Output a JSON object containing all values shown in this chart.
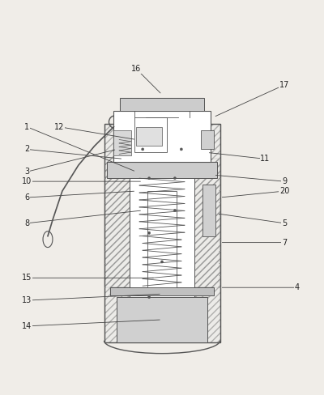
{
  "bg_color": "#f0ede8",
  "line_color": "#555555",
  "hatch_color": "#888888",
  "title": "",
  "labels": {
    "1": [
      0.08,
      0.72,
      0.42,
      0.58
    ],
    "2": [
      0.08,
      0.65,
      0.38,
      0.62
    ],
    "3": [
      0.08,
      0.58,
      0.36,
      0.65
    ],
    "4": [
      0.92,
      0.22,
      0.72,
      0.22
    ],
    "5": [
      0.88,
      0.42,
      0.7,
      0.45
    ],
    "6": [
      0.08,
      0.5,
      0.42,
      0.52
    ],
    "7": [
      0.88,
      0.36,
      0.72,
      0.38
    ],
    "8": [
      0.08,
      0.42,
      0.44,
      0.46
    ],
    "9": [
      0.88,
      0.55,
      0.68,
      0.57
    ],
    "10": [
      0.08,
      0.55,
      0.46,
      0.55
    ],
    "11": [
      0.82,
      0.62,
      0.66,
      0.64
    ],
    "12": [
      0.18,
      0.72,
      0.42,
      0.68
    ],
    "13": [
      0.08,
      0.18,
      0.5,
      0.2
    ],
    "14": [
      0.08,
      0.1,
      0.5,
      0.12
    ],
    "15": [
      0.08,
      0.25,
      0.48,
      0.25
    ],
    "16": [
      0.42,
      0.9,
      0.5,
      0.82
    ],
    "17": [
      0.88,
      0.85,
      0.68,
      0.75
    ],
    "20": [
      0.88,
      0.52,
      0.72,
      0.5
    ]
  }
}
